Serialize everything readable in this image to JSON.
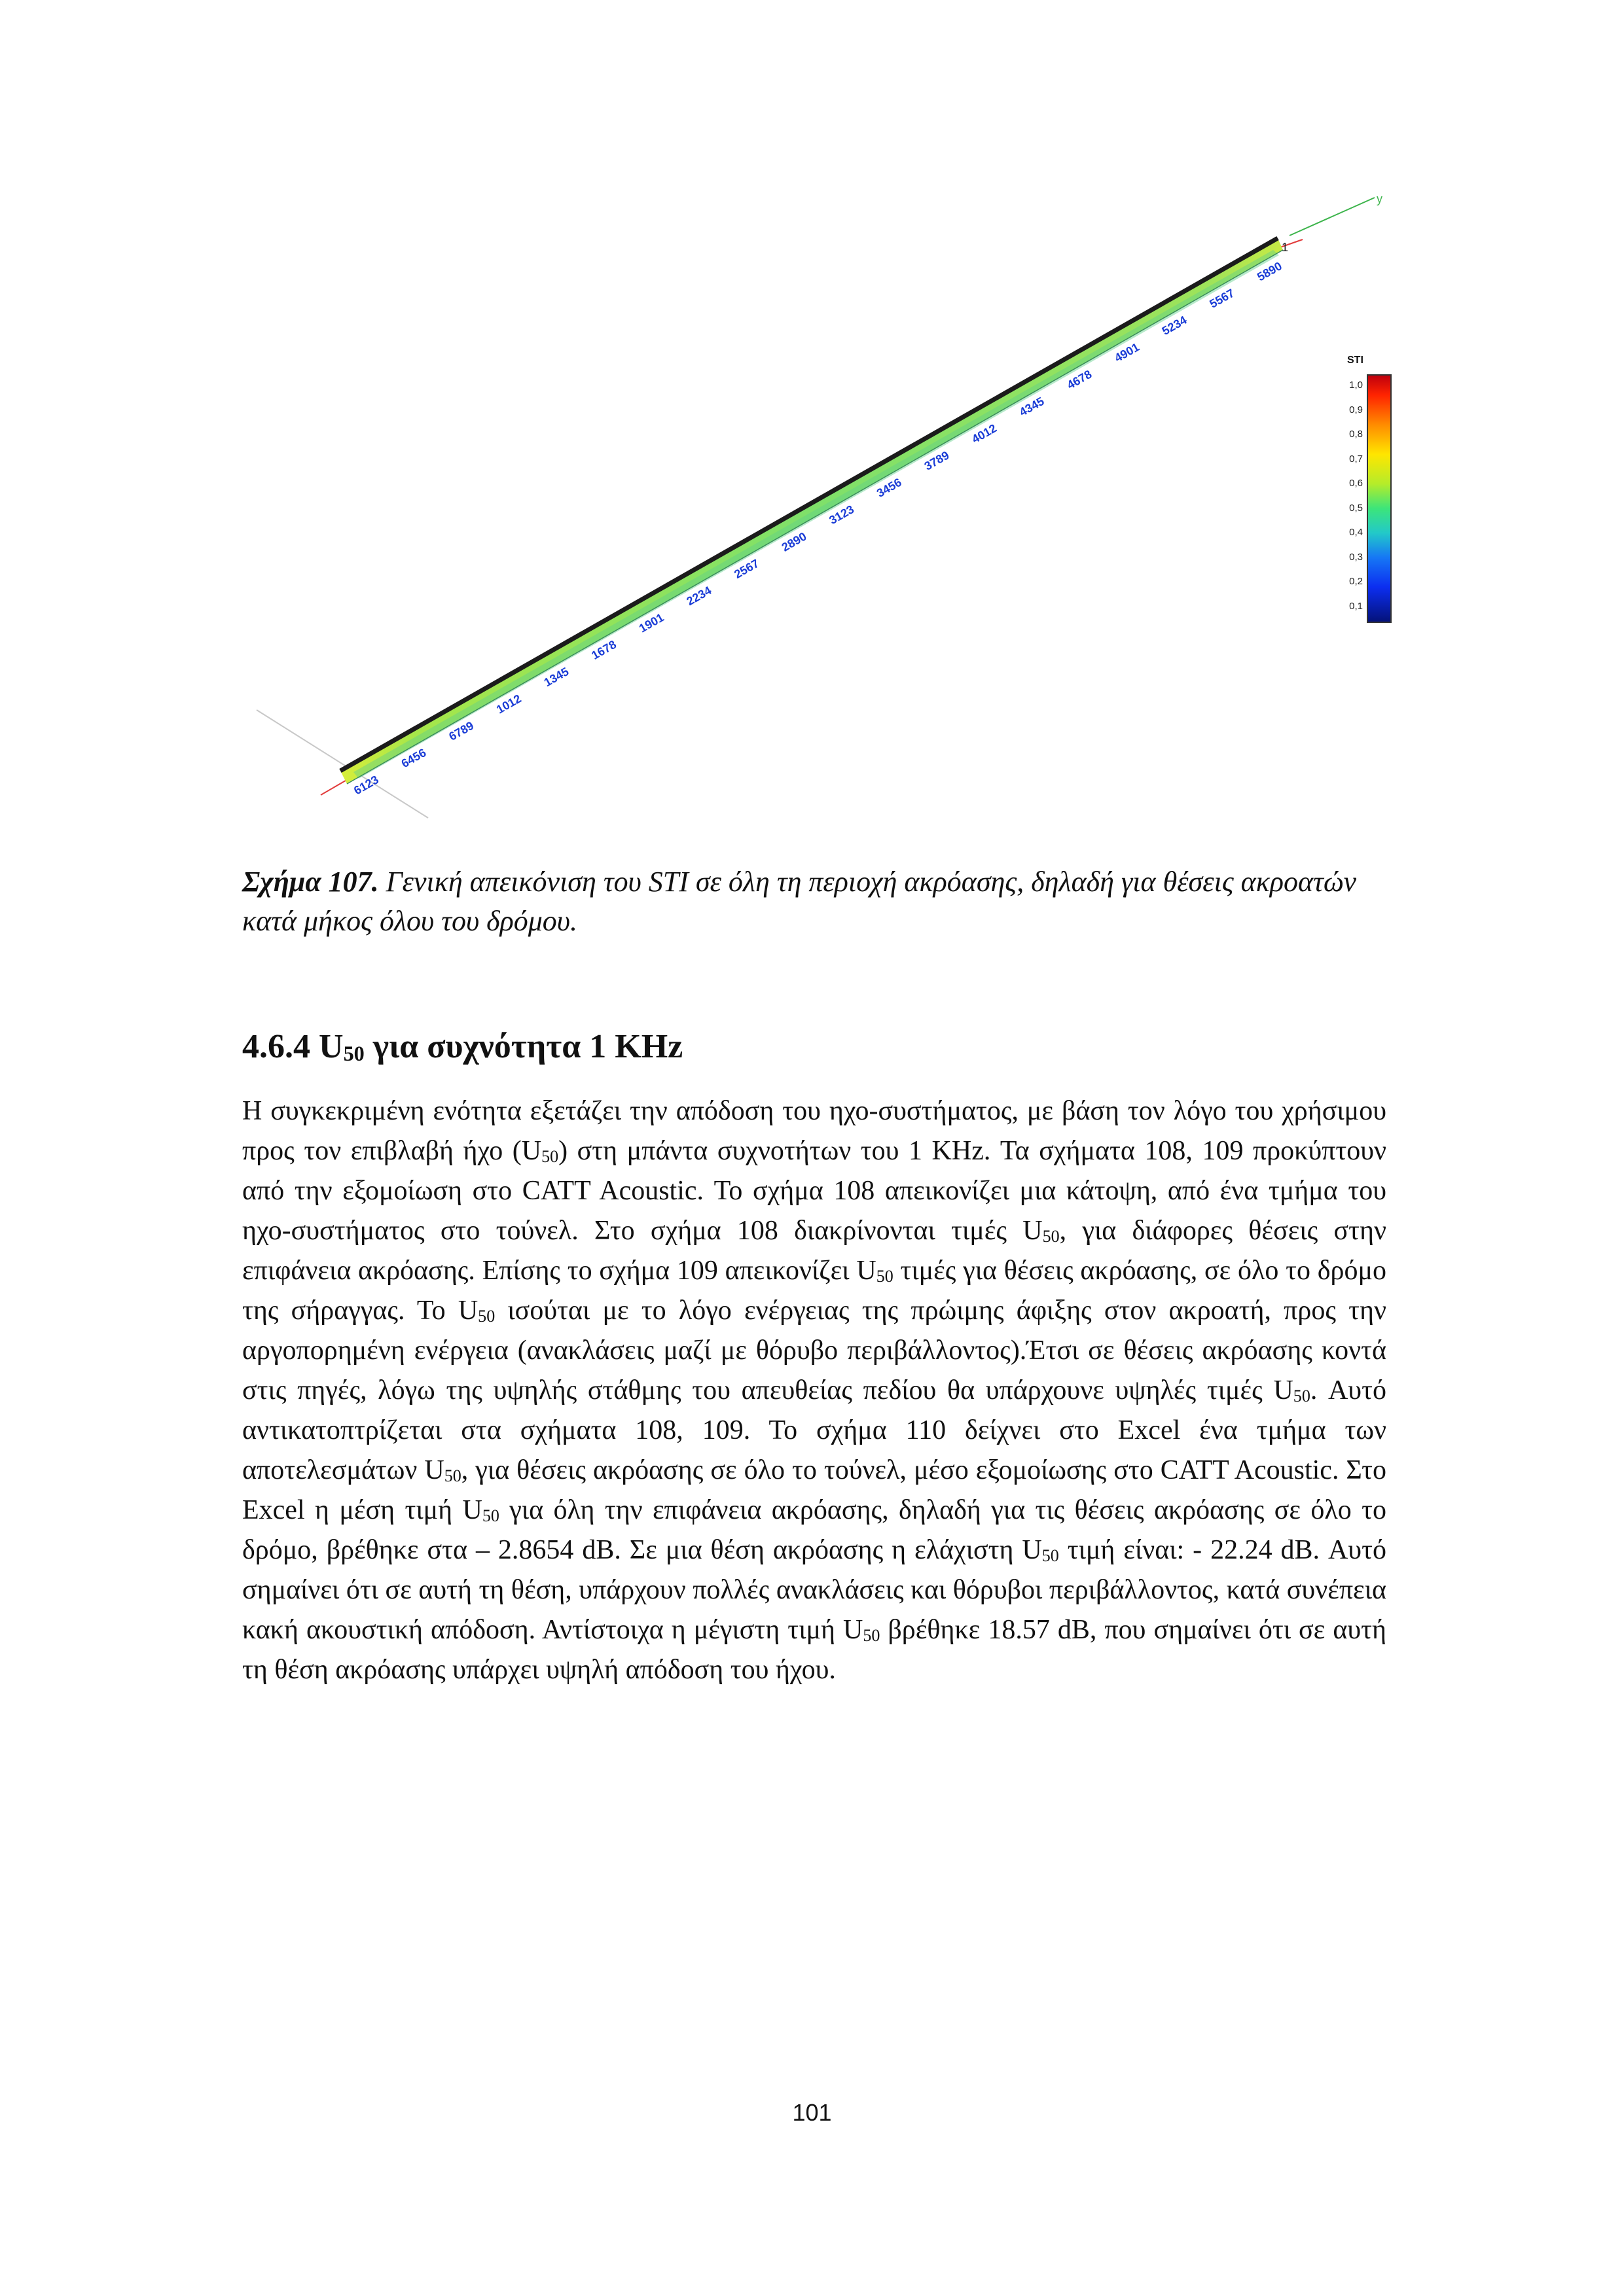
{
  "figure": {
    "axis_y": "y",
    "axis_x": "x",
    "end_label": "1",
    "legend": {
      "title": "STI",
      "ticks": [
        "1,0",
        "0,9",
        "0,8",
        "0,7",
        "0,6",
        "0,5",
        "0,4",
        "0,3",
        "0,2",
        "0,1"
      ]
    },
    "position_labels": [
      "6123",
      "6456",
      "6789",
      "1012",
      "1345",
      "1678",
      "1901",
      "2234",
      "2567",
      "2890",
      "3123",
      "3456",
      "3789",
      "4012",
      "4345",
      "4678",
      "4901",
      "5234",
      "5567",
      "5890"
    ]
  },
  "caption": {
    "label": "Σχήμα 107.",
    "text": " Γενική απεικόνιση του STI σε όλη τη περιοχή ακρόασης, δηλαδή για θέσεις ακροατών κατά μήκος όλου του δρόμου."
  },
  "heading": {
    "number": "4.6.4",
    "symbol": "U",
    "sub": "50",
    "rest": "για συχνότητα 1 KHz"
  },
  "body": {
    "s1": "Η συγκεκριμένη ενότητα εξετάζει την  απόδοση του ηχο-συστήματος, με βάση τον λόγο του χρήσιμου προς τον επιβλαβή ήχο (",
    "s2": ") στη μπάντα συχνοτήτων του 1 KHz. Τα σχήματα 108, 109 προκύπτουν από την εξομοίωση στο CATT Acoustic. Το σχήμα 108 απεικονίζει μια κάτοψη, από ένα τμήμα του ηχο-συστήματος στο τούνελ. Στο σχήμα 108 διακρίνονται τιμές ",
    "s3": ", για διάφορες θέσεις στην επιφάνεια ακρόασης. Επίσης το σχήμα 109 απεικονίζει ",
    "s4": " τιμές για θέσεις ακρόασης, σε όλο το δρόμο της σήραγγας. Το ",
    "s5": " ισούται με το λόγο ενέργειας της πρώιμης άφιξης στον ακροατή, προς την αργοπορημένη ενέργεια (ανακλάσεις μαζί με θόρυβο περιβάλλοντος).Έτσι σε θέσεις ακρόασης κοντά στις πηγές, λόγω της υψηλής στάθμης του απευθείας πεδίου θα υπάρχουνε υψηλές τιμές ",
    "s6": ". Αυτό αντικατοπτρίζεται στα σχήματα 108, 109. Το σχήμα 110 δείχνει στο Excel ένα τμήμα των αποτελεσμάτων ",
    "s7": ", για θέσεις ακρόασης σε όλο το τούνελ, μέσο εξομοίωσης στο CATT Acoustic. Στο Excel η μέση τιμή ",
    "s8": " για όλη την επιφάνεια ακρόασης, δηλαδή για τις θέσεις ακρόασης σε όλο το δρόμο, βρέθηκε στα – 2.8654 dB. Σε μια θέση ακρόασης η ελάχιστη ",
    "s9": " τιμή είναι: - 22.24 dB. Αυτό σημαίνει ότι σε αυτή τη θέση, υπάρχουν πολλές ανακλάσεις και θόρυβοι περιβάλλοντος, κατά συνέπεια κακή ακουστική απόδοση. Αντίστοιχα η μέγιστη τιμή ",
    "s10": " βρέθηκε 18.57 dB, που σημαίνει ότι σε αυτή τη θέση ακρόασης υπάρχει υψηλή απόδοση του ήχου.",
    "u": "U",
    "sub": "50"
  },
  "page_number": "101"
}
